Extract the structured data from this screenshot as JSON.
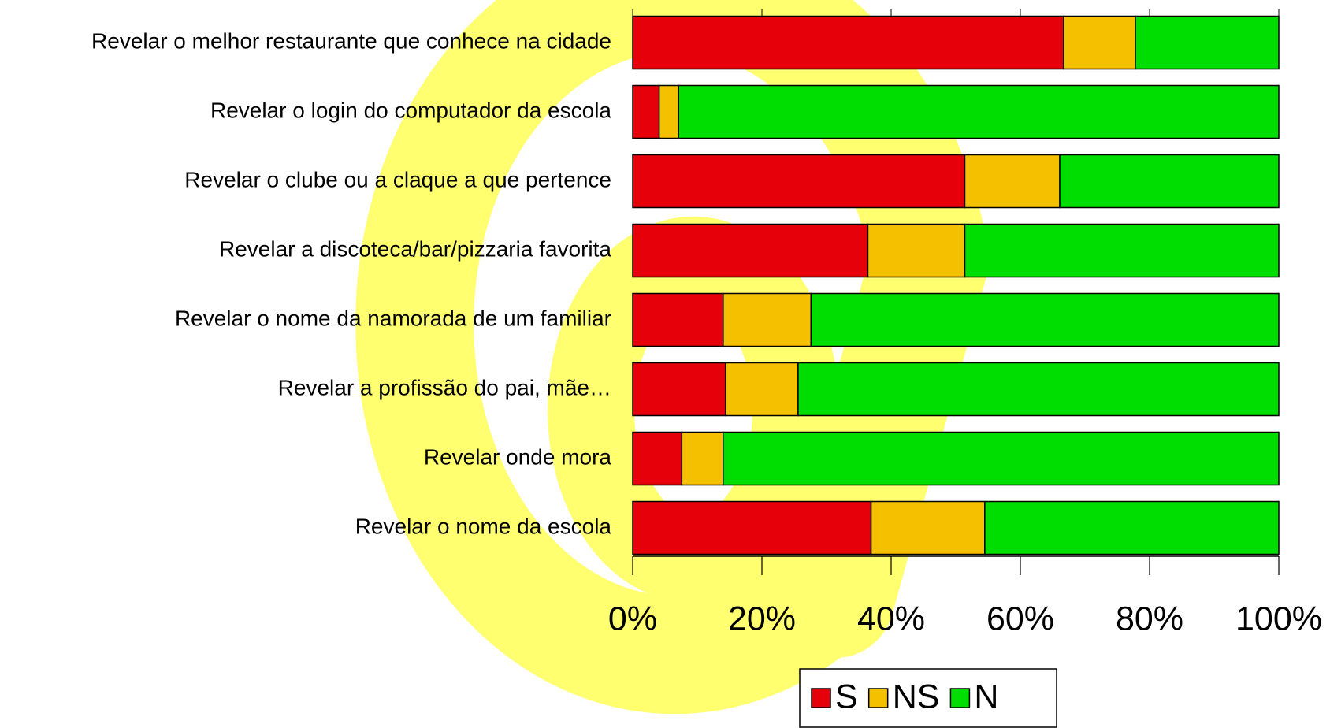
{
  "chart_data": {
    "type": "stacked-bar-horizontal",
    "categories": [
      "Revelar o melhor restaurante que conhece na cidade",
      "Revelar o login do computador da escola",
      "Revelar o clube ou a claque a que pertence",
      "Revelar a discoteca/bar/pizzaria favorita",
      "Revelar o nome da namorada de um familiar",
      "Revelar a profissão do pai, mãe…",
      "Revelar onde mora",
      "Revelar o nome da escola"
    ],
    "series": [
      {
        "name": "S",
        "color": "#e6000a",
        "values": [
          66.7,
          4.1,
          51.4,
          36.4,
          14.0,
          14.4,
          7.6,
          36.9
        ]
      },
      {
        "name": "NS",
        "color": "#f5c000",
        "values": [
          11.1,
          3.0,
          14.7,
          15.0,
          13.6,
          11.2,
          6.4,
          17.6
        ]
      },
      {
        "name": "N",
        "color": "#00dd00",
        "values": [
          22.2,
          92.9,
          33.9,
          48.6,
          72.4,
          74.4,
          86.0,
          45.5
        ]
      }
    ],
    "xlim": [
      0,
      100
    ],
    "xticks": [
      {
        "value": 0,
        "label": "0%"
      },
      {
        "value": 20,
        "label": "20%"
      },
      {
        "value": 40,
        "label": "40%"
      },
      {
        "value": 60,
        "label": "60%"
      },
      {
        "value": 80,
        "label": "80%"
      },
      {
        "value": 100,
        "label": "100%"
      }
    ],
    "legend": "bottom"
  }
}
